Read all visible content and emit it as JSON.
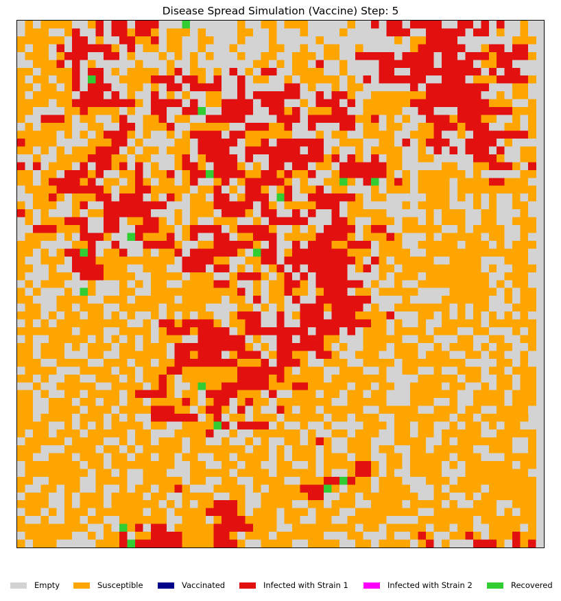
{
  "chart_data": {
    "type": "heatmap",
    "title": "Disease Spread Simulation (Vaccine) Step: 5",
    "rows": 67,
    "cols": 67,
    "states": [
      {
        "key": "E",
        "label": "Empty",
        "color": "#d3d3d3"
      },
      {
        "key": "S",
        "label": "Susceptible",
        "color": "#ffa500"
      },
      {
        "key": "V",
        "label": "Vaccinated",
        "color": "#00008b"
      },
      {
        "key": "I",
        "label": "Infected with Strain 1",
        "color": "#e31010"
      },
      {
        "key": "M",
        "label": "Infected with Strain 2",
        "color": "#ff00ff"
      },
      {
        "key": "R",
        "label": "Recovered",
        "color": "#32cd32"
      }
    ],
    "legend_placement": "bottom",
    "grid": false,
    "cell_counts_note": "",
    "grid_rows": [
      "ES.SSSS..SI.II.III...R......S..SS.SSS.....S..I.II.IIII..II.I.I..S.",
      ".SSS..SI..I.IISIIS.SSS.S....SS..S...S....S.....III..IIIII.II.S..S.",
      "SSSSSS.II.S..IISSI.SS..SS...S...S.....S.........S.SSIIII.......SSS",
      "S.SS.I.IIIIIS.I.SS.SS..S...S....SS..S..SS..S......SIIIIII..SII.II.",
      ".SSS.SIII..II.S...S.S.S.S...S..SS..SSS.SS..IIIII.IIII.II.IIISIIIIS",
      "..SSSI.I.S.....S...S..S.......SS.S.SS.I..S....IIIIIII.IIII.SSII...",
      "SS.SSSSI.II.S.SSSS.SI.SS.S.I.S.II..SSSS..S....II..IIIIIIIII.I.II..",
      "S.SS.SSI.RI..SSSSIII.IIS.I..I.SS..S.SSSSS.S.I.IIIIII..III.SSSIIIIS",
      "SS.SS.SI.III..SS.S.II.IIII..I.....II.S..S.SS......I.IIIIIIII...SS.",
      "S.SSSSS.III.I.S..I.S.S..SS..I.IIIIII..I.IIS..SSSSSSSIIIIIII..S.SS.",
      "SSSS.SSIIIIIIIIS.IIII.I.SSIIII.III..S.III.I.SSSSSSIIIIIIIIIISSS..S",
      "SS....SSISSSS.S..II..IIR..IIII..IISI.SSSII..SSSSS..II...IIIIIIISSS",
      "S..IIIS.SS..SI..SSI.SS..IIIII....III.IIIIIISSI.S.S..IIISIIISS..S.S",
      ".S.SSSS..SS..II.SSSI..SSSSS..IIISSI..I...II.SS.SS..SSIIISIII..SS.S",
      "SSSSS.S.S.SIIIS.S..S.SIIII.IISSSSSS...S.SS..SSSS..SSSI..S.IIIIIIIS",
      "ISSSS....SSSII.S....SS.IIIII.SSI.IIIIII..SSS..SS.I.SIII..IIII.S...",
      "SS.S.S.SSSIII.S.SS.SSS.IIII..IIIIIII.II.S..S.SSSS..S.I.I.III.I..SS",
      "..S..SSSSIIISS.SS...SI.SIIII.I..IIIIIIISI.IS.I.SS..SS.....IIIS..SS",
      "I.I.SSS.I.IISI.I.S..SIIS.IIIS.S.II.II.SS.IIIIIISS.....SS..SSIIIS.I",
      "SS.SS.IIISI..SSI.SSI.SIIRIIIISSIISISSI..SIIIIIIS.S.SSSSSS.S.....SS",
      "SS.SIIIISI.SS.SIS.SS.SI..SI.SIIIIIS.S..SSRS.IR.SIS.SSSS.SSSSIISSS.",
      ".SSSSIIIIIIS.SSIISSSSS.SSI.S.IIS.SI.SSI.SS...S.SSS.SSSS.SSSSSSSSSS",
      "..SSIS.SSSII.III.S.IS.SS.II.SIII.RI..IIIIIIS.SS.....SSS.S.S.S..S.S",
      "S.SSS..SI..IIIIIIII...SSSIIIII.IS.SSSSIII.SS.....S.SSSS...S.S..SS.",
      "IS.S...S.SSIIIIII...S.SSS.IIIS.II..I.I..I.SSSSS.....S.SSS..SS...S.",
      ".S.SSSIII..II.SSIIS.S.S..SSS..S.IIIII...IIS..SSS.SS.S.SSS..SS..SSS",
      "..IIISSSI..II..IIISS.SIIII.SIIIIS..S.S.IIII.SII..SSSSS..S.SSSS..SS",
      ".SSSS.S.IIIS..RISSSI.SI..II.SSIII.SSSSIIIIS.SSSIS...S.SSSSS.SS..S.",
      "SSS....SSI..I...IIIIS..SSIIIIIS.I..I.IIISSIII.SSS..SSSSS.SSS.S.SSS",
      "SS.S.SIIRI.SSI..S.SSI.IIIIIIS.RII.SIIIIIIISSS.SSSS..SSSSSSSSSSSSS.",
      "S..SSS.IIISSSSSSSSSS.IIIISS..SSII.IIIIIIIIIS.IS.SSSSS..SSSS...SSS.",
      "SS..S..IIIISSS..SSS..III.II.S.S.SI.I.IIIII.SI.SS.SSSSSSSSSS.S..SSS",
      "S...SSS.IIISSSS..SSSS.SSS..SIIIS.SI.I.IIII....S.SSS.SSSSSSSS..SSS.",
      ".S.SSS...S...S.S.SS..SSSSIIS..S.SSIIS.IIIIII.S..S..SSSSSSSSS.S.SS.",
      "S.S...S.RS...SS..SSSSSSSSSSSI.S.SSISS.SIII.SS.SSSSS....SSSSSS.S.SS",
      "SS...SSSS..SSS.SSSSS.SSSSS.SS.I.SS.I..IIIIIII....S....SSSSSS..S.SS",
      ".SS..SS.SSS..SSSSS.SSSSS....SS.S.S..IIISIIII.S..SSSSSSS.S.SS...SSS",
      "SSS.S.SS.SS.S.S..S.S.S.SS..SIII..I.SIII.IIISSSSI...SS.S.S.S.S.S.S.",
      ".S.S.SSSSSSSSS..S.IISIIIIS.SSII..I..IIIIIIIIISS.S..S..SSSSS.SSSSSS",
      "SSSSSSS.SSS..SSSS.SIIISIIII.SIIIIIIII.III.I.SSS.SSSS.SSS..SS...S.S",
      ".S..SSSSS.S.S.S.S.SSS..IIIIII.S..II.IIISS...SSSSS..SS...SS..SS..SS",
      "SS.SSS.S.SSS.SS.SSS.IIIIIIIIIS.S.IIIIIIS.S..SSS.SSS..S.SSS.S.SS..S",
      "SS.SSS...SS..SSSSSS.IISIII.SIII.SIISS.IIS..SSS..SSS.SSS..SS.SS..S.",
      "SSS..SSSS..SSS.SS.SSIIIIIIIISSSI.IIIS..SSS..SSSS.SSSSSSSS....SS.S.",
      ".SSSS...SSSS.SS.SSSIISSSSSSSIIIIIIS.SSS..SSS..S..SS..S..SSS.SS.SSS",
      "SS.S..SS..SSS.S.SSIS.SSSSSSSIIIISISSSSS.SSSSSSS....SSSSS.SS..SS.SS",
      "..S..SSSSS..SSSS.SIS..SRSSIIIIIISSSIISSSSS.SS.SS..SSSS.SS..S.SS.SS",
      "SS.S..SS.SSSS.SIIIIS.SS.IIIISSS.I..SSS.SS.SS.SS...SSSSSS..SSSS.SSS",
      "SS..SSS.SS.SS.SS.SSSSIS.SII.SISS.SSSSSSS..SSSSS...SSS..S..SSSS.SSS",
      "SS..SSSS.SSS.SSSSIIISS.SIIS.I.S..IS.SS.SSSSS..SSSSS..SSS.SS..SSSS.",
      "SS.SSSS.SSS.S.S..IIIIII.SI.SS.SSS.SSSSS.SS.SSS..SSSSSSS.SS.SSSSSS",
      "SSSS..S.S.S.SSSS.SS..SSSSRI.IIII.S..S..S....SSS.SS.SS..S.SS.S.SS..",
      "S.SS.SSS.SSSSS.SS...SSSSI..S..SSSSSS.S..SS.SSS..SS.SS.SSSSS..SSSSS",
      ".SSSSS.SSSS..S.SS.SSS.SS..S..S.S..SS.SIS..SSS...SSSS..S.SSSSSSS..S",
      "SSS...SSSS.SS.S.SSSSS.SSSSSSS.SS.S.SSS.S..SSS.SS..SS.SSSSS..SSS..S",
      "SS..SSS.SSS.SS.SS.SS.SS..SS.SSSS.S.SSS.SSS.SS..SS.SSSSS.SSS...SSSS",
      ".SSSSSSS.SS.SSSSSSSS..SS..SS.SS..SS..S.SSSSIIS.SS.SSSS.S.SSSSSS.SS",
      ".SSSSSSSS.SS.S..SSS...SSSSS.SSSS.SSSSS.S..SIIS.S..SSSS...SSSSSSSS.",
      "SS..SSSS..SSSS..SSSSS.SS..SS..SSSS..SSSIIRISS.SSS...SSS.SSSSSSSSSS",
      "S..SS.SS..S..S.SS.SSIS...SSSS.S.SSSSIIIRS.SSS.SSSS...S.SSSS.SSSSSS",
      ".SSS..S.SSS.SSSS.SS..SSSS..SS..SSSSSSII..SS.SSSSSSS..SS..S.SSSSSSS",
      "SSSS..S.SSS.SSSSSS.S.S.SSIIIS..SSSS..SS.SSS..SSSS.SSSS.S..SSS..SSS",
      ".SS.S.SSS.SSSSSS.SS.SSSSIIIIS.SSS.SSS.SSS..SSSSSSSS..SSSSSSSS.S.SS",
      "S..S..SS.SS..SSSSSS..SSS.SIIISSSS.SS..SS..SSSSS....SSSSSSS.SSSSSSS",
      "SSSSSSSSS..S.RSI.II.SSSSSIIIIISSS..SSSSSSSS.SS.SSSSS.SS.SS..SSSS.S",
      ".SSSSSS..S.SSI.SSIIIISSSSIIS.SSS.SSSSSS...SS...S..SIS..SSIS.SSSISS",
      "S.SSS.....SSSIRIIIIIISSSSIIIS..SSSS..SSSS..SS.SSSS.SI.S...IIIS.ISI."
    ]
  },
  "legend": [
    {
      "label": "Empty",
      "color": "#d3d3d3"
    },
    {
      "label": "Susceptible",
      "color": "#ffa500"
    },
    {
      "label": "Vaccinated",
      "color": "#00008b"
    },
    {
      "label": "Infected with Strain 1",
      "color": "#e31010"
    },
    {
      "label": "Infected with Strain 2",
      "color": "#ff00ff"
    },
    {
      "label": "Recovered",
      "color": "#32cd32"
    }
  ]
}
